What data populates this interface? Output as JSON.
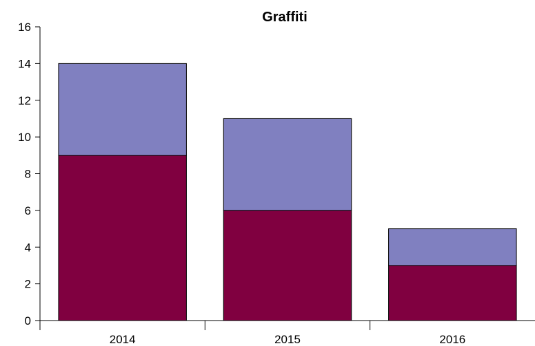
{
  "chart_data": {
    "type": "bar",
    "stacked": true,
    "title": "Graffiti",
    "xlabel": "",
    "ylabel": "",
    "categories": [
      "2014",
      "2015",
      "2016"
    ],
    "series": [
      {
        "color": "#800040",
        "values": [
          9,
          6,
          3
        ]
      },
      {
        "color": "#8080c0",
        "values": [
          5,
          5,
          2
        ]
      }
    ],
    "ylim": [
      0,
      16
    ],
    "yticks": [
      0,
      2,
      4,
      6,
      8,
      10,
      12,
      14,
      16
    ],
    "grid": false,
    "legend": "none"
  }
}
